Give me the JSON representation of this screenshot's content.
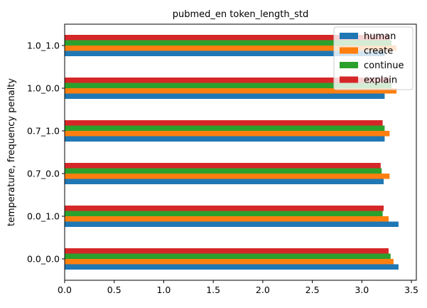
{
  "chart_data": {
    "type": "bar",
    "orientation": "horizontal",
    "title": "pubmed_en token_length_std",
    "xlabel": "",
    "ylabel": "temperature, frequency penalty",
    "categories": [
      "0.0_0.0",
      "0.0_1.0",
      "0.7_0.0",
      "0.7_1.0",
      "1.0_0.0",
      "1.0_1.0"
    ],
    "series": [
      {
        "name": "human",
        "color": "#1f77b4",
        "values": [
          3.37,
          3.37,
          3.22,
          3.23,
          3.23,
          3.23
        ]
      },
      {
        "name": "create",
        "color": "#ff7f0e",
        "values": [
          3.32,
          3.27,
          3.28,
          3.28,
          3.35,
          3.35
        ]
      },
      {
        "name": "continue",
        "color": "#2ca02c",
        "values": [
          3.29,
          3.21,
          3.2,
          3.23,
          3.3,
          3.3
        ]
      },
      {
        "name": "explain",
        "color": "#d62728",
        "values": [
          3.27,
          3.22,
          3.19,
          3.21,
          3.28,
          3.28
        ]
      }
    ],
    "xlim": [
      0,
      3.55
    ],
    "xticks": [
      0.0,
      0.5,
      1.0,
      1.5,
      2.0,
      2.5,
      3.0,
      3.5
    ],
    "xtick_labels": [
      "0.0",
      "0.5",
      "1.0",
      "1.5",
      "2.0",
      "2.5",
      "3.0",
      "3.5"
    ],
    "grid": false,
    "legend_position": "top-right"
  }
}
